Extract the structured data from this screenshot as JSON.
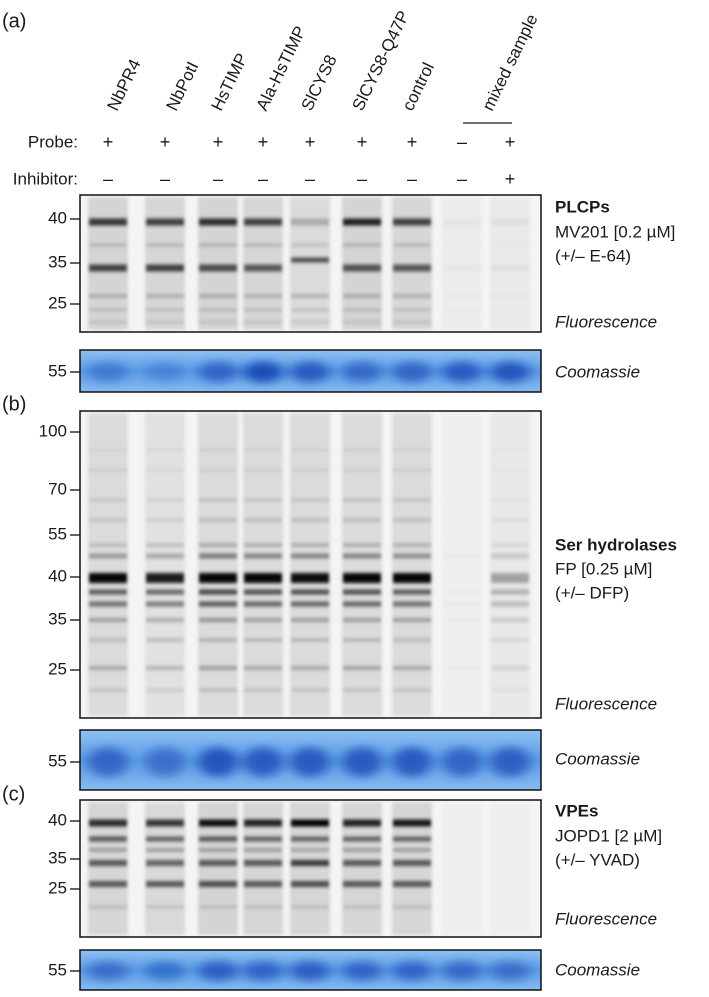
{
  "panel_labels": [
    "(a)",
    "(b)",
    "(c)"
  ],
  "lanes": {
    "labels": [
      "NbPR4",
      "NbPotI",
      "HsTIMP",
      "Ala-HsTIMP",
      "SlCYS8",
      "SlCYS8-Q47P",
      "control",
      "mixed sample"
    ],
    "probe": {
      "label": "Probe:",
      "signs": [
        "+",
        "+",
        "+",
        "+",
        "+",
        "+",
        "+",
        "–",
        "+"
      ]
    },
    "inhibitor": {
      "label": "Inhibitor:",
      "signs": [
        "–",
        "–",
        "–",
        "–",
        "–",
        "–",
        "–",
        "–",
        "+"
      ]
    }
  },
  "panels": [
    {
      "markers": [
        40,
        35,
        25
      ],
      "coomassie_marker": 55,
      "target": "PLCPs",
      "probe": "MV201 [0.2 µM]",
      "control": "(+/– E-64)",
      "readout": "Fluorescence",
      "stain": "Coomassie"
    },
    {
      "markers": [
        100,
        70,
        55,
        40,
        35,
        25
      ],
      "coomassie_marker": 55,
      "target": "Ser hydrolases",
      "probe": "FP [0.25 µM]",
      "control": "(+/– DFP)",
      "readout": "Fluorescence",
      "stain": "Coomassie"
    },
    {
      "markers": [
        40,
        35,
        25
      ],
      "coomassie_marker": 55,
      "target": "VPEs",
      "probe": "JOPD1 [2 µM]",
      "control": "(+/– YVAD)",
      "readout": "Fluorescence",
      "stain": "Coomassie"
    }
  ]
}
